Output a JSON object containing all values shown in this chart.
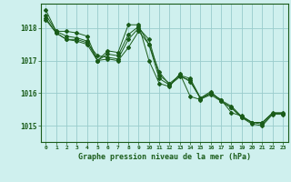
{
  "title": "Graphe pression niveau de la mer (hPa)",
  "bg_color": "#cff0ee",
  "grid_color": "#99cccc",
  "line_color": "#1a5c1a",
  "xlim": [
    -0.5,
    23.5
  ],
  "ylim": [
    1014.5,
    1018.75
  ],
  "yticks": [
    1015,
    1016,
    1017,
    1018
  ],
  "xticks": [
    0,
    1,
    2,
    3,
    4,
    5,
    6,
    7,
    8,
    9,
    10,
    11,
    12,
    13,
    14,
    15,
    16,
    17,
    18,
    19,
    20,
    21,
    22,
    23
  ],
  "series": [
    [
      1018.55,
      1017.9,
      1017.9,
      1017.85,
      1017.75,
      1017.0,
      1017.3,
      1017.25,
      1018.1,
      1018.1,
      1017.0,
      1016.3,
      1016.2,
      1016.6,
      1015.9,
      1015.8,
      1016.0,
      1015.8,
      1015.4,
      1015.3,
      1015.1,
      1015.1,
      1015.4,
      1015.4
    ],
    [
      1018.4,
      1017.9,
      1017.75,
      1017.7,
      1017.6,
      1017.0,
      1017.2,
      1017.15,
      1017.8,
      1018.05,
      1017.5,
      1016.65,
      1016.25,
      1016.55,
      1016.35,
      1015.85,
      1016.05,
      1015.75,
      1015.55,
      1015.25,
      1015.1,
      1015.1,
      1015.38,
      1015.38
    ],
    [
      1018.3,
      1017.85,
      1017.65,
      1017.65,
      1017.55,
      1017.15,
      1017.1,
      1017.05,
      1017.65,
      1018.0,
      1017.65,
      1016.55,
      1016.3,
      1016.55,
      1016.45,
      1015.85,
      1016.0,
      1015.78,
      1015.6,
      1015.28,
      1015.1,
      1015.05,
      1015.38,
      1015.38
    ],
    [
      1018.25,
      1017.85,
      1017.65,
      1017.6,
      1017.5,
      1017.0,
      1017.05,
      1017.0,
      1017.4,
      1017.9,
      1017.5,
      1016.45,
      1016.25,
      1016.5,
      1016.4,
      1015.82,
      1015.95,
      1015.75,
      1015.55,
      1015.25,
      1015.05,
      1015.0,
      1015.35,
      1015.35
    ]
  ]
}
